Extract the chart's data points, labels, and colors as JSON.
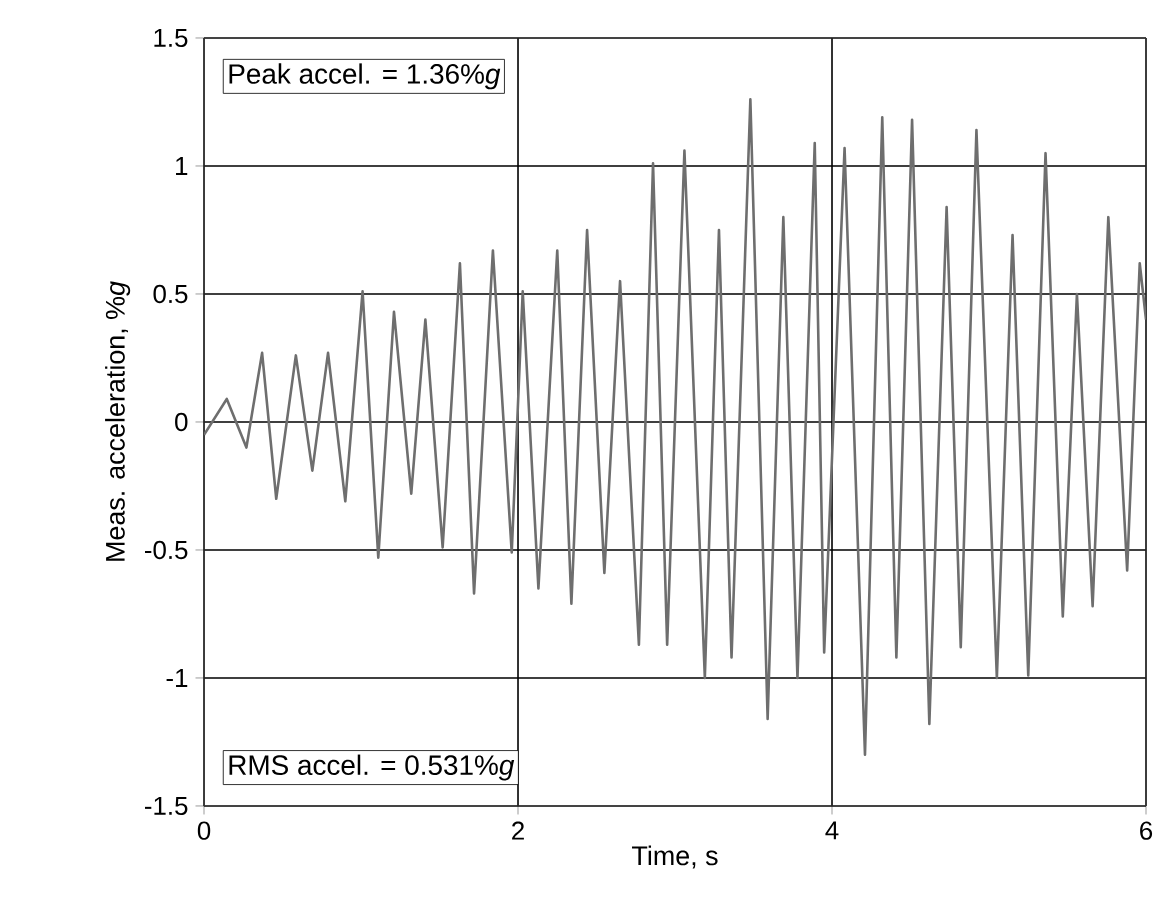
{
  "chart_data": {
    "type": "line",
    "xlabel": "Time, s",
    "ylabel": "Meas. acceleration, %*g*",
    "annotations": [
      "Peak accel. = 1.36%*g*",
      "RMS accel. = 0.531%*g*"
    ],
    "xlim": [
      0,
      6
    ],
    "ylim": [
      -1.5,
      1.5
    ],
    "xticks": [
      0,
      2,
      4,
      6
    ],
    "yticks": [
      -1.5,
      -1,
      -0.5,
      0,
      0.5,
      1,
      1.5
    ],
    "grid": true,
    "series": [
      {
        "color": "#6e6e6e",
        "x": [
          0,
          0.145,
          0.27,
          0.37,
          0.46,
          0.585,
          0.69,
          0.79,
          0.9,
          1.01,
          1.11,
          1.21,
          1.32,
          1.41,
          1.52,
          1.63,
          1.72,
          1.84,
          1.96,
          2.03,
          2.13,
          2.25,
          2.34,
          2.44,
          2.55,
          2.65,
          2.77,
          2.86,
          2.95,
          3.06,
          3.19,
          3.28,
          3.36,
          3.48,
          3.59,
          3.69,
          3.78,
          3.89,
          3.95,
          4.08,
          4.21,
          4.32,
          4.41,
          4.51,
          4.62,
          4.73,
          4.82,
          4.92,
          5.05,
          5.15,
          5.25,
          5.36,
          5.47,
          5.56,
          5.66,
          5.76,
          5.88,
          5.96,
          6.0
        ],
        "values": [
          -0.05,
          0.09,
          -0.1,
          0.27,
          -0.3,
          0.26,
          -0.19,
          0.27,
          -0.31,
          0.51,
          -0.53,
          0.43,
          -0.28,
          0.4,
          -0.49,
          0.62,
          -0.67,
          0.67,
          -0.51,
          0.51,
          -0.65,
          0.67,
          -0.71,
          0.75,
          -0.59,
          0.55,
          -0.87,
          1.01,
          -0.87,
          1.06,
          -1.0,
          0.75,
          -0.92,
          1.26,
          -1.16,
          0.8,
          -1.0,
          1.09,
          -0.9,
          1.07,
          -1.3,
          1.19,
          -0.92,
          1.18,
          -1.18,
          0.84,
          -0.88,
          1.14,
          -1.0,
          0.73,
          -0.99,
          1.05,
          -0.76,
          0.5,
          -0.72,
          0.8,
          -0.58,
          0.62,
          0.4
        ]
      }
    ]
  }
}
